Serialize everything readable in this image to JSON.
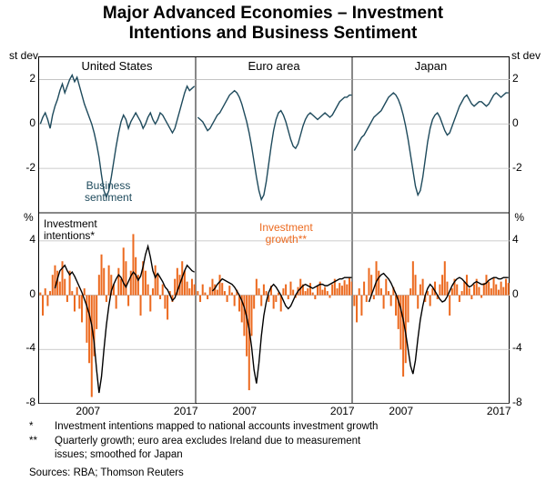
{
  "title_line1": "Major Advanced Economies – Investment",
  "title_line2": "Intentions and Business Sentiment",
  "title_fontsize": 19,
  "panels": {
    "us": {
      "label": "United States"
    },
    "ea": {
      "label": "Euro area"
    },
    "jp": {
      "label": "Japan"
    }
  },
  "top_row": {
    "unit": "st dev",
    "ylim": [
      -4,
      3
    ],
    "yticks": [
      -2,
      0,
      2
    ],
    "sentiment_color": "#1e4a5c",
    "label_sentiment": "Business\nsentiment"
  },
  "bottom_row": {
    "unit": "%",
    "ylim": [
      -8,
      6
    ],
    "yticks": [
      -8,
      -4,
      0,
      4
    ],
    "growth_color": "#ec6a1f",
    "intentions_color": "#000000",
    "label_intentions": "Investment\nintentions*",
    "label_growth": "Investment\ngrowth**"
  },
  "x_range_years": [
    2002,
    2018
  ],
  "x_ticks": [
    2007,
    2017
  ],
  "sentiment": {
    "us": [
      0,
      0.3,
      0.5,
      0.2,
      -0.2,
      0.4,
      0.8,
      1.1,
      1.5,
      1.8,
      1.4,
      1.7,
      2.0,
      2.2,
      1.9,
      2.1,
      1.7,
      1.3,
      0.9,
      0.6,
      0.3,
      0.0,
      -0.4,
      -0.9,
      -1.5,
      -2.3,
      -3.0,
      -3.3,
      -3.0,
      -2.4,
      -1.7,
      -1.0,
      -0.4,
      0.1,
      0.4,
      0.2,
      -0.2,
      0.1,
      0.3,
      0.5,
      0.3,
      0.1,
      -0.2,
      0.0,
      0.3,
      0.5,
      0.2,
      0.0,
      0.2,
      0.5,
      0.4,
      0.2,
      0.0,
      -0.2,
      -0.4,
      -0.2,
      0.2,
      0.6,
      1.0,
      1.4,
      1.7,
      1.5,
      1.6,
      1.7
    ],
    "ea": [
      0.3,
      0.2,
      0.1,
      -0.1,
      -0.3,
      -0.2,
      0.0,
      0.2,
      0.4,
      0.5,
      0.7,
      0.9,
      1.1,
      1.3,
      1.4,
      1.5,
      1.4,
      1.2,
      0.9,
      0.5,
      0.1,
      -0.4,
      -1.0,
      -1.7,
      -2.4,
      -3.0,
      -3.4,
      -3.2,
      -2.6,
      -1.8,
      -1.0,
      -0.3,
      0.2,
      0.5,
      0.6,
      0.4,
      0.1,
      -0.3,
      -0.7,
      -1.0,
      -1.1,
      -0.9,
      -0.5,
      -0.1,
      0.2,
      0.4,
      0.5,
      0.4,
      0.3,
      0.2,
      0.3,
      0.4,
      0.5,
      0.4,
      0.3,
      0.4,
      0.6,
      0.8,
      1.0,
      1.1,
      1.2,
      1.2,
      1.3,
      1.3
    ],
    "jp": [
      -1.2,
      -1.0,
      -0.8,
      -0.6,
      -0.5,
      -0.3,
      -0.1,
      0.1,
      0.3,
      0.4,
      0.5,
      0.6,
      0.8,
      1.0,
      1.2,
      1.3,
      1.4,
      1.3,
      1.1,
      0.8,
      0.4,
      -0.1,
      -0.7,
      -1.4,
      -2.1,
      -2.8,
      -3.2,
      -3.0,
      -2.4,
      -1.6,
      -0.8,
      -0.2,
      0.2,
      0.4,
      0.5,
      0.3,
      0.0,
      -0.3,
      -0.5,
      -0.4,
      -0.1,
      0.2,
      0.5,
      0.8,
      1.0,
      1.2,
      1.3,
      1.1,
      0.9,
      0.8,
      0.9,
      1.0,
      1.0,
      0.9,
      0.8,
      0.9,
      1.1,
      1.3,
      1.4,
      1.3,
      1.2,
      1.3,
      1.4,
      1.4
    ]
  },
  "intentions": {
    "us": [
      null,
      null,
      null,
      null,
      null,
      null,
      0.5,
      1.2,
      1.8,
      2.0,
      2.2,
      1.8,
      1.5,
      1.7,
      1.4,
      1.0,
      0.6,
      0.2,
      -0.3,
      -0.8,
      -1.4,
      -2.2,
      -3.5,
      -5.5,
      -7.2,
      -6.0,
      -4.0,
      -2.2,
      -0.8,
      0.3,
      0.8,
      1.2,
      1.5,
      1.3,
      0.9,
      0.6,
      1.0,
      1.4,
      1.7,
      1.5,
      1.1,
      1.4,
      2.1,
      3.0,
      3.6,
      2.8,
      1.8,
      1.3,
      1.6,
      1.3,
      1.0,
      0.6,
      0.4,
      0.0,
      -0.4,
      -0.2,
      0.3,
      0.8,
      1.3,
      1.8,
      2.2,
      2.0,
      1.8,
      1.7
    ],
    "ea": [
      null,
      null,
      null,
      null,
      null,
      null,
      0.3,
      0.5,
      0.8,
      1.0,
      1.2,
      1.1,
      1.0,
      0.9,
      0.8,
      0.6,
      0.3,
      0.0,
      -0.4,
      -0.9,
      -1.6,
      -2.5,
      -3.8,
      -5.5,
      -6.5,
      -5.0,
      -3.0,
      -1.5,
      -0.5,
      0.2,
      0.6,
      0.8,
      0.6,
      0.3,
      0.0,
      -0.4,
      -0.8,
      -1.0,
      -0.8,
      -0.4,
      0.0,
      0.3,
      0.5,
      0.7,
      0.8,
      0.7,
      0.6,
      0.5,
      0.6,
      0.7,
      0.8,
      0.8,
      0.7,
      0.7,
      0.8,
      0.9,
      1.0,
      1.1,
      1.2,
      1.2,
      1.3,
      1.3,
      1.3,
      1.3
    ],
    "jp": [
      null,
      null,
      null,
      null,
      null,
      null,
      -0.5,
      0.0,
      0.5,
      1.0,
      1.3,
      1.5,
      1.6,
      1.4,
      1.2,
      0.9,
      0.5,
      0.1,
      -0.4,
      -1.0,
      -1.8,
      -2.8,
      -4.0,
      -5.2,
      -5.8,
      -4.8,
      -3.2,
      -1.8,
      -0.8,
      0.0,
      0.5,
      0.8,
      0.6,
      0.3,
      0.0,
      -0.3,
      -0.5,
      -0.4,
      -0.1,
      0.3,
      0.7,
      1.0,
      1.2,
      1.3,
      1.2,
      1.0,
      0.8,
      0.6,
      0.7,
      0.9,
      1.0,
      0.9,
      0.8,
      0.8,
      0.9,
      1.1,
      1.2,
      1.3,
      1.3,
      1.2,
      1.2,
      1.3,
      1.3,
      1.3
    ]
  },
  "growth": {
    "us": [
      0.2,
      -1.5,
      0.5,
      -0.8,
      0.3,
      1.5,
      2.2,
      1.8,
      1.0,
      2.5,
      1.2,
      -0.5,
      1.8,
      0.3,
      -1.2,
      0.6,
      -1.0,
      -2.0,
      0.5,
      -3.5,
      -5.0,
      -7.5,
      -4.5,
      -2.5,
      1.5,
      3.0,
      2.0,
      -0.5,
      2.2,
      1.5,
      0.8,
      -1.0,
      2.0,
      1.2,
      3.5,
      2.5,
      -0.8,
      1.8,
      4.5,
      2.8,
      1.5,
      -1.5,
      2.5,
      1.8,
      0.8,
      -1.2,
      0.5,
      2.2,
      1.5,
      -0.3,
      0.8,
      -1.0,
      -1.8,
      0.3,
      -0.5,
      1.2,
      2.0,
      1.5,
      2.5,
      1.8,
      1.0,
      0.5,
      1.2,
      0.8
    ],
    "ea": [
      0.3,
      -0.5,
      0.8,
      0.2,
      -0.3,
      0.6,
      1.2,
      0.8,
      0.4,
      1.5,
      0.9,
      0.3,
      -0.5,
      0.7,
      0.2,
      -0.8,
      0.4,
      -1.2,
      -2.0,
      -3.0,
      -4.5,
      -7.0,
      -3.0,
      -1.0,
      1.2,
      0.5,
      -0.8,
      0.8,
      0.3,
      -0.5,
      0.7,
      -1.0,
      -0.5,
      0.2,
      -1.2,
      0.5,
      0.8,
      -0.3,
      1.0,
      0.4,
      -0.2,
      0.6,
      1.2,
      0.8,
      0.3,
      0.5,
      0.9,
      0.2,
      -0.3,
      0.7,
      1.0,
      0.4,
      0.6,
      0.3,
      -0.2,
      0.8,
      1.2,
      0.5,
      0.9,
      0.7,
      1.1,
      0.8,
      1.3,
      1.0
    ],
    "jp": [
      -0.8,
      -2.0,
      0.5,
      -1.5,
      1.0,
      -0.5,
      2.0,
      1.5,
      -0.3,
      2.5,
      1.8,
      0.5,
      -1.0,
      1.2,
      0.3,
      -0.8,
      0.6,
      -1.5,
      -2.5,
      -4.0,
      -6.0,
      -5.0,
      -2.0,
      0.5,
      2.5,
      1.5,
      -1.0,
      0.8,
      1.2,
      -0.5,
      0.3,
      -0.8,
      0.5,
      1.0,
      -0.3,
      0.8,
      1.5,
      2.5,
      1.0,
      -1.5,
      0.5,
      1.2,
      0.8,
      -0.5,
      0.3,
      1.0,
      1.5,
      0.5,
      -0.3,
      0.8,
      1.2,
      0.6,
      -0.2,
      0.9,
      1.5,
      1.0,
      0.5,
      1.3,
      0.8,
      0.4,
      1.0,
      0.6,
      1.2,
      0.9
    ]
  },
  "footnote1_star": "*",
  "footnote1": "Investment intentions mapped to national accounts investment growth",
  "footnote2_star": "**",
  "footnote2a": "Quarterly growth; euro area excludes Ireland due to measurement",
  "footnote2b": "issues; smoothed for Japan",
  "sources": "Sources: RBA; Thomson Reuters"
}
